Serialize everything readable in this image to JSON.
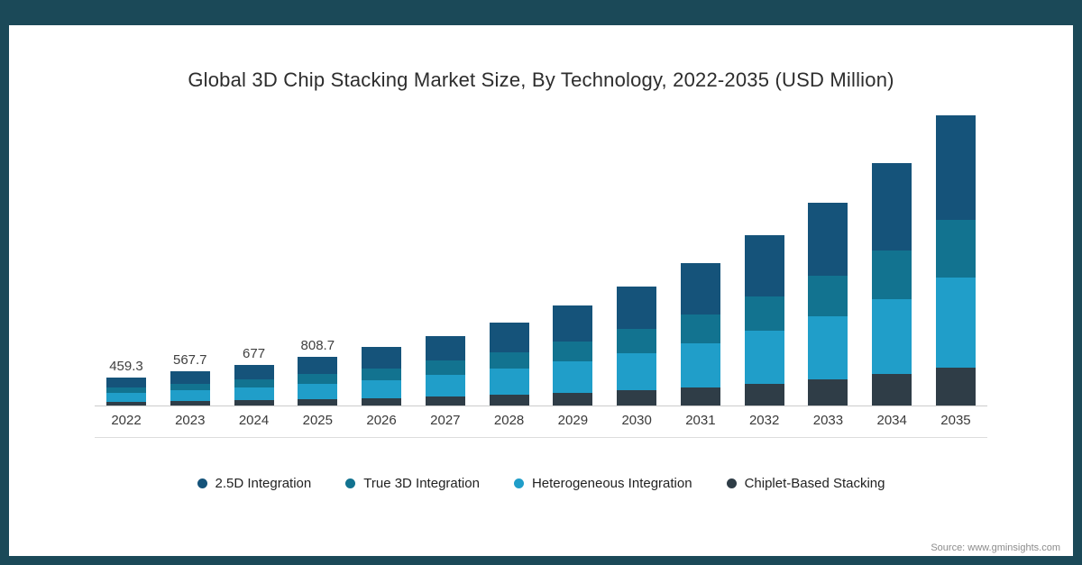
{
  "title": "Global 3D Chip Stacking Market Size, By Technology, 2022-2035 (USD Million)",
  "source": "Source: www.gminsights.com",
  "frame": {
    "border_color": "#1b4958",
    "background": "#ffffff"
  },
  "legend": [
    {
      "label": "2.5D Integration",
      "color": "#15537a"
    },
    {
      "label": "True 3D Integration",
      "color": "#127390"
    },
    {
      "label": "Heterogeneous Integration",
      "color": "#209ec9"
    },
    {
      "label": "Chiplet-Based Stacking",
      "color": "#2f3d47"
    }
  ],
  "chart_data": {
    "type": "bar",
    "stacked": true,
    "title": "Global 3D Chip Stacking Market Size, By Technology, 2022-2035 (USD Million)",
    "xlabel": "",
    "ylabel": "USD Million",
    "legend_position": "bottom",
    "grid": false,
    "categories": [
      "2022",
      "2023",
      "2024",
      "2025",
      "2026",
      "2027",
      "2028",
      "2029",
      "2030",
      "2031",
      "2032",
      "2033",
      "2034",
      "2035"
    ],
    "totals": [
      459.3,
      567.7,
      677,
      808.7,
      966,
      1154,
      1379,
      1648,
      1969,
      2353,
      2812,
      3360,
      4015,
      4798
    ],
    "data_labels": [
      "459.3",
      "567.7",
      "677",
      "808.7",
      "",
      "",
      "",
      "",
      "",
      "",
      "",
      "",
      "",
      ""
    ],
    "series": [
      {
        "name": "2.5D Integration",
        "color": "#15537a",
        "values": [
          165.3,
          204.4,
          243.7,
          291.1,
          347.8,
          415.4,
          496.4,
          593.3,
          708.8,
          847.1,
          1012.3,
          1209.6,
          1445.4,
          1727.3
        ]
      },
      {
        "name": "True 3D Integration",
        "color": "#127390",
        "values": [
          91.9,
          113.5,
          135.4,
          161.7,
          193.2,
          230.8,
          275.8,
          329.6,
          393.8,
          470.6,
          562.4,
          672.0,
          803.0,
          959.6
        ]
      },
      {
        "name": "Heterogeneous Integration",
        "color": "#209ec9",
        "values": [
          142.4,
          176.0,
          209.9,
          250.7,
          299.5,
          357.7,
          427.5,
          510.9,
          610.4,
          729.4,
          871.7,
          1041.6,
          1244.7,
          1487.4
        ]
      },
      {
        "name": "Chiplet-Based Stacking",
        "color": "#2f3d47",
        "values": [
          59.7,
          73.8,
          88.0,
          105.1,
          125.6,
          150.0,
          179.3,
          214.2,
          256.0,
          305.9,
          365.6,
          436.8,
          522.0,
          623.7
        ]
      }
    ]
  }
}
